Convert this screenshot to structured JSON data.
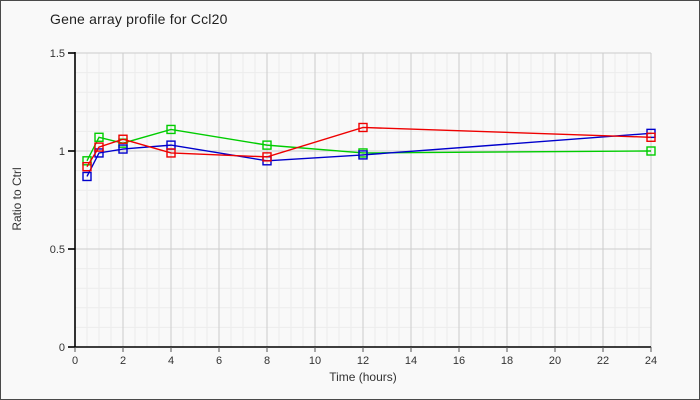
{
  "chart_data": {
    "type": "line",
    "title": "Gene array profile for Ccl20",
    "xlabel": "Time (hours)",
    "ylabel": "Ratio to Ctrl",
    "xlim": [
      0,
      24
    ],
    "ylim": [
      0,
      1.5
    ],
    "x_ticks": [
      0,
      2,
      4,
      6,
      8,
      10,
      12,
      14,
      16,
      18,
      20,
      22,
      24
    ],
    "y_ticks": [
      {
        "v": 0,
        "label": "0"
      },
      {
        "v": 0.5,
        "label": "0.5"
      },
      {
        "v": 1,
        "label": "1"
      },
      {
        "v": 1.5,
        "label": "1.5"
      }
    ],
    "minor_x_step": 0.5,
    "minor_y_step": 0.1,
    "grid": true,
    "legend_position": "none",
    "marker": "open-square",
    "x": [
      0.5,
      1,
      2,
      4,
      8,
      12,
      24
    ],
    "series": [
      {
        "name": "green",
        "color": "#00cc00",
        "values": [
          0.95,
          1.07,
          1.04,
          1.11,
          1.03,
          0.99,
          1.0
        ]
      },
      {
        "name": "blue",
        "color": "#0000cc",
        "values": [
          0.87,
          0.99,
          1.01,
          1.03,
          0.95,
          0.98,
          1.09
        ]
      },
      {
        "name": "red",
        "color": "#ee0000",
        "values": [
          0.92,
          1.02,
          1.06,
          0.99,
          0.97,
          1.12,
          1.07
        ]
      }
    ]
  }
}
